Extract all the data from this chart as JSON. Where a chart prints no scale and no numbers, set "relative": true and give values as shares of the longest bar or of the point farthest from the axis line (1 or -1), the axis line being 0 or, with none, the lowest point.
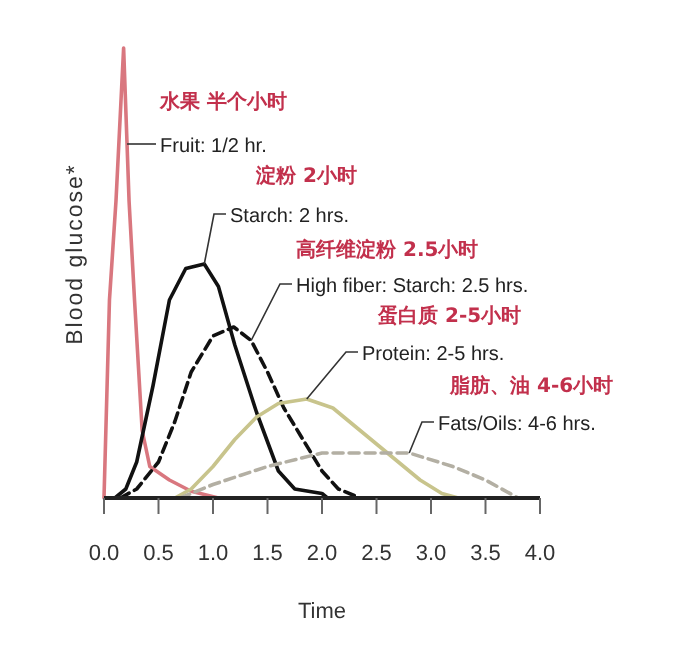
{
  "chart_data": {
    "type": "line",
    "relative": true,
    "xlabel": "Time",
    "ylabel": "Blood glucose*",
    "xlim": [
      0,
      4
    ],
    "xticks": [
      {
        "value": 0,
        "label": "0.0"
      },
      {
        "value": 0.5,
        "label": "0.5"
      },
      {
        "value": 1,
        "label": "1.0"
      },
      {
        "value": 1.5,
        "label": "1.5"
      },
      {
        "value": 2,
        "label": "2.0"
      },
      {
        "value": 2.5,
        "label": "2.5"
      },
      {
        "value": 3,
        "label": "3.0"
      },
      {
        "value": 3.5,
        "label": "3.5"
      },
      {
        "value": 4,
        "label": "4.0"
      }
    ],
    "marker": "none",
    "annotations": [
      "水果 半个小时",
      "淀粉 2小时",
      "高纤维淀粉 2.5小时",
      "蛋白质 2-5小时",
      "脂肪、油 4-6小时"
    ],
    "series": [
      {
        "name": "Fruit: 1/2 hr.",
        "color": "#d9777f",
        "line_style": "solid",
        "x": [
          0,
          0.05,
          0.11,
          0.18,
          0.23,
          0.28,
          0.35,
          0.42,
          0.6,
          0.8,
          1.05
        ],
        "values": [
          0,
          0.44,
          0.66,
          1,
          0.66,
          0.44,
          0.15,
          0.07,
          0.04,
          0.015,
          0
        ]
      },
      {
        "name": "Starch: 2 hrs.",
        "color": "#111111",
        "line_style": "solid",
        "x": [
          0.1,
          0.2,
          0.3,
          0.45,
          0.6,
          0.75,
          0.92,
          1.05,
          1.2,
          1.4,
          1.6,
          1.75,
          2.0,
          2.05
        ],
        "values": [
          0,
          0.02,
          0.08,
          0.25,
          0.44,
          0.51,
          0.52,
          0.47,
          0.34,
          0.19,
          0.06,
          0.02,
          0.01,
          0
        ]
      },
      {
        "name": "High fiber: Starch: 2.5 hrs.",
        "color": "#111111",
        "line_style": "dashed",
        "x": [
          0.15,
          0.3,
          0.5,
          0.65,
          0.8,
          1.0,
          1.19,
          1.35,
          1.5,
          1.65,
          1.8,
          2.0,
          2.15,
          2.35
        ],
        "values": [
          0,
          0.02,
          0.08,
          0.17,
          0.28,
          0.36,
          0.38,
          0.35,
          0.28,
          0.2,
          0.14,
          0.06,
          0.02,
          0
        ]
      },
      {
        "name": "Protein: 2-5 hrs.",
        "color": "#c8c48c",
        "line_style": "solid",
        "x": [
          0.65,
          0.8,
          1.0,
          1.2,
          1.4,
          1.6,
          1.86,
          2.1,
          2.3,
          2.5,
          2.7,
          2.9,
          3.1,
          3.25
        ],
        "values": [
          0,
          0.02,
          0.07,
          0.13,
          0.18,
          0.21,
          0.22,
          0.2,
          0.16,
          0.12,
          0.08,
          0.04,
          0.01,
          0
        ]
      },
      {
        "name": "Fats/Oils: 4-6 hrs.",
        "color": "#b3afa3",
        "line_style": "dashed",
        "x": [
          0.7,
          1.0,
          1.5,
          2.0,
          2.5,
          2.8,
          3.2,
          3.5,
          3.8
        ],
        "values": [
          0,
          0.03,
          0.07,
          0.1,
          0.1,
          0.1,
          0.07,
          0.04,
          0
        ]
      }
    ]
  }
}
